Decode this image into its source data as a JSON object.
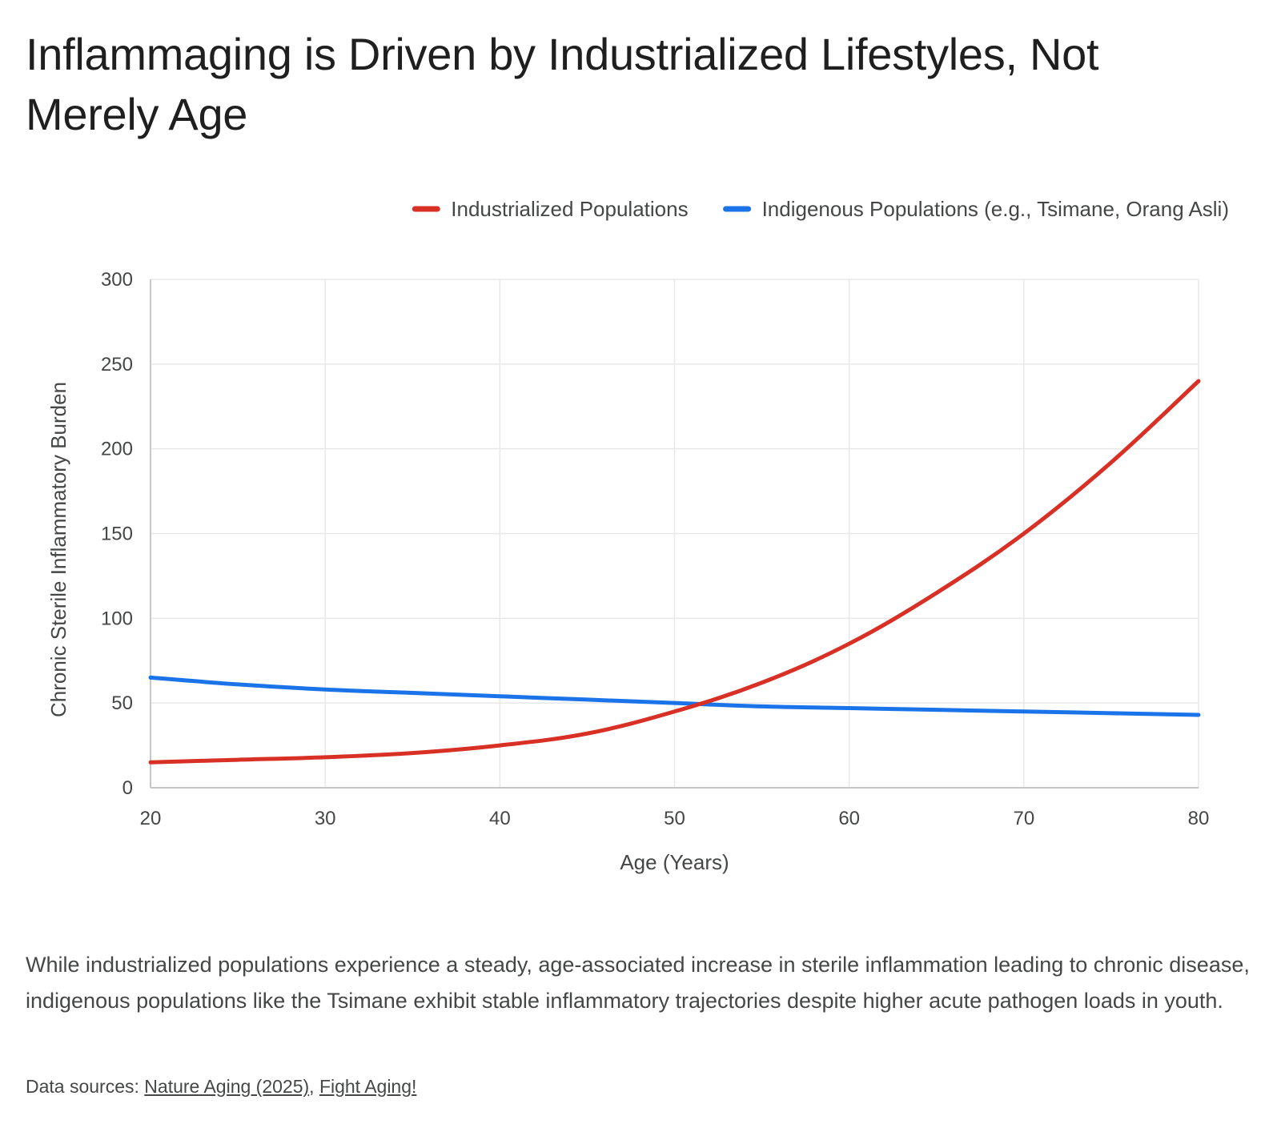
{
  "title": "Inflammaging is Driven by Industrialized Lifestyles, Not Merely Age",
  "chart_data": {
    "type": "line",
    "xlabel": "Age (Years)",
    "ylabel": "Chronic Sterile Inflammatory Burden",
    "xlim": [
      20,
      80
    ],
    "ylim": [
      0,
      300
    ],
    "x_ticks": [
      "20",
      "30",
      "40",
      "50",
      "60",
      "70",
      "80"
    ],
    "y_ticks": [
      "0",
      "50",
      "100",
      "150",
      "200",
      "250",
      "300"
    ],
    "grid": true,
    "legend_position": "top-right",
    "series": [
      {
        "name": "Industrialized Populations",
        "color": "#d93025",
        "x": [
          20,
          25,
          30,
          35,
          40,
          45,
          50,
          55,
          60,
          65,
          70,
          75,
          80
        ],
        "values": [
          15,
          16.5,
          18,
          20.5,
          25,
          32,
          45,
          62,
          85,
          115,
          150,
          192,
          240
        ]
      },
      {
        "name": "Indigenous Populations (e.g., Tsimane, Orang Asli)",
        "color": "#1a73e8",
        "x": [
          20,
          25,
          30,
          35,
          40,
          45,
          50,
          55,
          60,
          65,
          70,
          75,
          80
        ],
        "values": [
          65,
          61,
          58,
          56,
          54,
          52,
          50,
          48,
          47,
          46,
          45,
          44,
          43
        ]
      }
    ]
  },
  "description": "While industrialized populations experience a steady, age-associated increase in sterile inflammation leading to chronic disease, indigenous populations like the Tsimane exhibit stable inflammatory trajectories despite higher acute pathogen loads in youth.",
  "sources": {
    "prefix": "Data sources: ",
    "links": [
      {
        "label": "Nature Aging (2025)"
      },
      {
        "label": "Fight Aging!"
      }
    ],
    "separator": ", "
  },
  "colors": {
    "grid": "#e8e8e8",
    "axis": "#c7c7c7",
    "text": "#444746"
  }
}
